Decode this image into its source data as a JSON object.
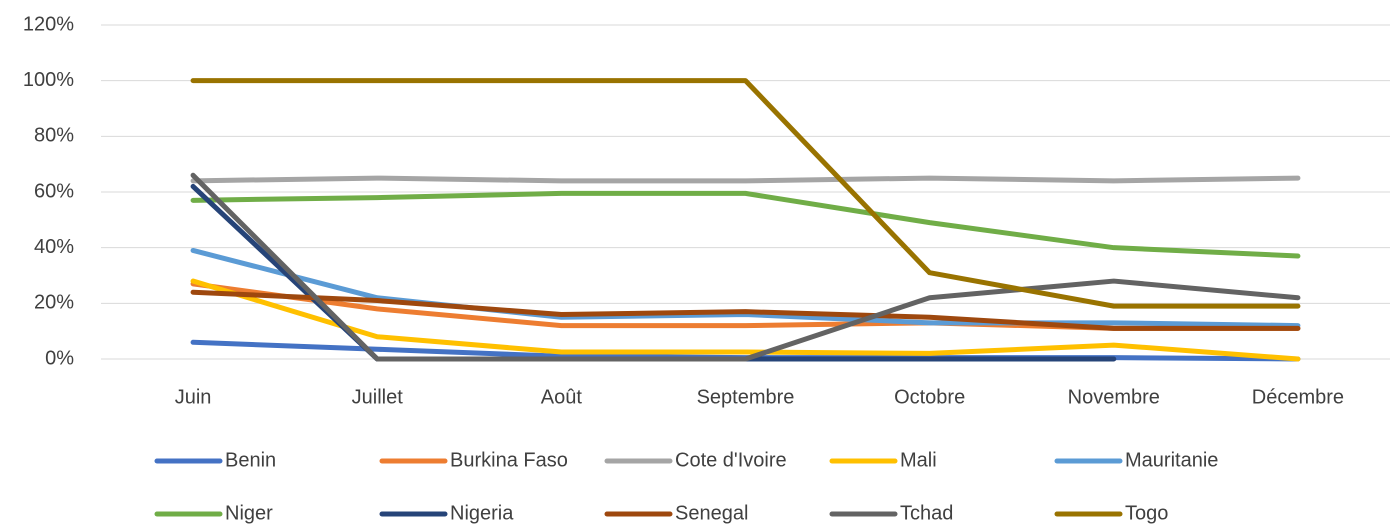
{
  "chart_data": {
    "type": "line",
    "categories": [
      "Juin",
      "Juillet",
      "Août",
      "Septembre",
      "Octobre",
      "Novembre",
      "Décembre"
    ],
    "series": [
      {
        "name": "Benin",
        "color": "#4472c4",
        "values": [
          6,
          3.5,
          1,
          0.5,
          0.5,
          0.5,
          0
        ]
      },
      {
        "name": "Burkina Faso",
        "color": "#ed7d31",
        "values": [
          27,
          18,
          12,
          12,
          13,
          11,
          11
        ]
      },
      {
        "name": "Cote d'Ivoire",
        "color": "#a5a5a5",
        "values": [
          64,
          65,
          64,
          64,
          65,
          64,
          65
        ]
      },
      {
        "name": "Mali",
        "color": "#ffc000",
        "values": [
          28,
          8,
          2.5,
          2.5,
          2,
          5,
          0
        ]
      },
      {
        "name": "Mauritanie",
        "color": "#5b9bd5",
        "values": [
          39,
          22,
          15,
          16,
          13,
          13,
          12
        ]
      },
      {
        "name": "Niger",
        "color": "#70ad47",
        "values": [
          57,
          58,
          59.5,
          59.5,
          49,
          40,
          37
        ]
      },
      {
        "name": "Nigeria",
        "color": "#264478",
        "values": [
          62,
          0,
          0,
          0,
          0,
          0,
          null
        ]
      },
      {
        "name": "Senegal",
        "color": "#9e480e",
        "values": [
          24,
          21,
          16,
          17,
          15,
          11,
          11
        ]
      },
      {
        "name": "Tchad",
        "color": "#636363",
        "values": [
          66,
          0,
          0,
          0,
          22,
          28,
          22
        ]
      },
      {
        "name": "Togo",
        "color": "#997300",
        "values": [
          100,
          100,
          100,
          100,
          31,
          19,
          19
        ]
      }
    ],
    "ylim": [
      0,
      120
    ],
    "yticks": [
      {
        "value": 0,
        "label": "0%"
      },
      {
        "value": 20,
        "label": "20%"
      },
      {
        "value": 40,
        "label": "40%"
      },
      {
        "value": 60,
        "label": "60%"
      },
      {
        "value": 80,
        "label": "80%"
      },
      {
        "value": 100,
        "label": "100%"
      },
      {
        "value": 120,
        "label": "120%"
      }
    ],
    "grid": true,
    "legend": "bottom"
  }
}
